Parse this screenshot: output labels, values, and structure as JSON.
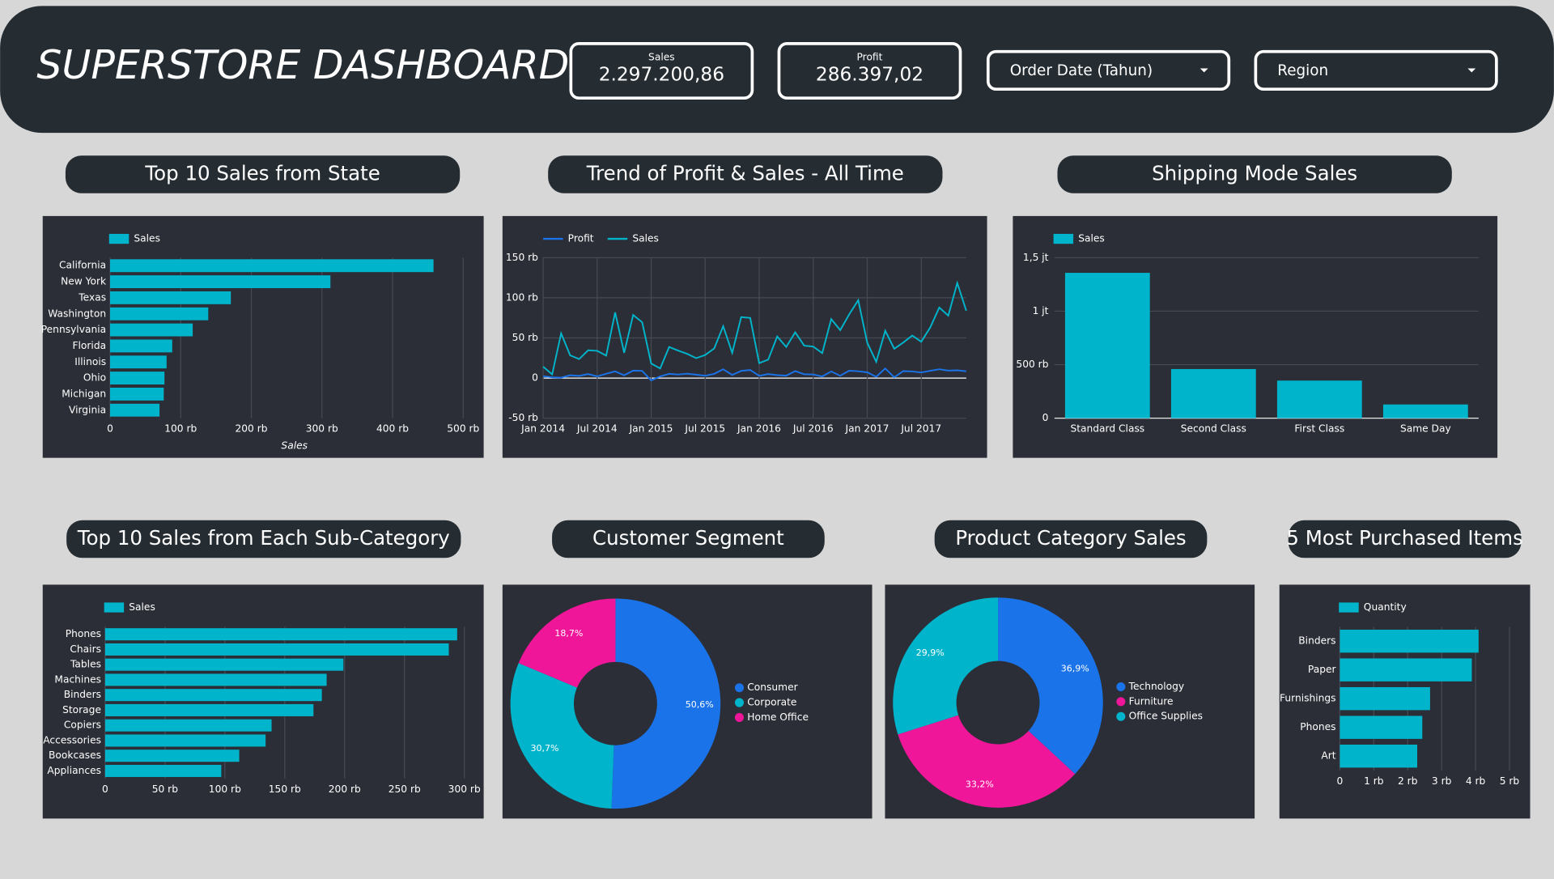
{
  "header": {
    "title": "SUPERSTORE DASHBOARD",
    "kpis": [
      {
        "label": "Sales",
        "value": "2.297.200,86"
      },
      {
        "label": "Profit",
        "value": "286.397,02"
      }
    ],
    "filters": [
      "Order Date (Tahun)",
      "Region"
    ]
  },
  "chart_data": [
    {
      "type": "hbar",
      "title": "Top 10 Sales from State",
      "categories": [
        "California",
        "New York",
        "Texas",
        "Washington",
        "Pennsylvania",
        "Florida",
        "Illinois",
        "Ohio",
        "Michigan",
        "Virginia"
      ],
      "series": [
        {
          "name": "Sales",
          "color": "#00b4cb",
          "values": [
            458000,
            312000,
            171000,
            139000,
            117000,
            88000,
            80000,
            77000,
            76000,
            70000
          ]
        }
      ],
      "xlim": [
        0,
        522000
      ],
      "xticks": [
        0,
        {
          "value": 100000,
          "label": "100 rb"
        },
        {
          "value": 200000,
          "label": "200 rb"
        },
        {
          "value": 300000,
          "label": "300 rb"
        },
        {
          "value": 400000,
          "label": "400 rb"
        },
        {
          "value": 500000,
          "label": "500 rb"
        }
      ],
      "xlabel": "Sales",
      "grid": true
    },
    {
      "type": "line",
      "title": "Trend of Profit & Sales - All Time",
      "x": [
        "2014-01",
        "2014-02",
        "2014-03",
        "2014-04",
        "2014-05",
        "2014-06",
        "2014-07",
        "2014-08",
        "2014-09",
        "2014-10",
        "2014-11",
        "2014-12",
        "2015-01",
        "2015-02",
        "2015-03",
        "2015-04",
        "2015-05",
        "2015-06",
        "2015-07",
        "2015-08",
        "2015-09",
        "2015-10",
        "2015-11",
        "2015-12",
        "2016-01",
        "2016-02",
        "2016-03",
        "2016-04",
        "2016-05",
        "2016-06",
        "2016-07",
        "2016-08",
        "2016-09",
        "2016-10",
        "2016-11",
        "2016-12",
        "2017-01",
        "2017-02",
        "2017-03",
        "2017-04",
        "2017-05",
        "2017-06",
        "2017-07",
        "2017-08",
        "2017-09",
        "2017-10",
        "2017-11",
        "2017-12"
      ],
      "xticks": [
        {
          "value": "2014-01",
          "label": "Jan 2014"
        },
        {
          "value": "2014-07",
          "label": "Jul 2014"
        },
        {
          "value": "2015-01",
          "label": "Jan 2015"
        },
        {
          "value": "2015-07",
          "label": "Jul 2015"
        },
        {
          "value": "2016-01",
          "label": "Jan 2016"
        },
        {
          "value": "2016-07",
          "label": "Jul 2016"
        },
        {
          "value": "2017-01",
          "label": "Jan 2017"
        },
        {
          "value": "2017-07",
          "label": "Jul 2017"
        }
      ],
      "series": [
        {
          "name": "Profit",
          "color": "#1a73e8",
          "values": [
            2450,
            862,
            498,
            3489,
            2739,
            4977,
            2100,
            5318,
            8328,
            3448,
            9292,
            8984,
            -3000,
            2004,
            5269,
            4442,
            5458,
            4260,
            2937,
            5226,
            10992,
            3878,
            8939,
            10002,
            2824,
            5005,
            3612,
            2977,
            8663,
            4751,
            4432,
            2063,
            8209,
            2918,
            9133,
            8484,
            7140,
            1614,
            12000,
            933,
            8662,
            8209,
            6953,
            9041,
            10991,
            9275,
            9690,
            8483
          ]
        },
        {
          "name": "Sales",
          "color": "#00b4cb",
          "values": [
            14237,
            4520,
            55691,
            28295,
            23648,
            34595,
            33946,
            27909,
            81777,
            31453,
            78628,
            69546,
            18174,
            11951,
            38726,
            34195,
            30132,
            24797,
            28765,
            36898,
            64596,
            31404,
            75973,
            74920,
            18542,
            22979,
            51716,
            38750,
            56988,
            40344,
            39262,
            31115,
            73410,
            59688,
            79412,
            96999,
            43971,
            20301,
            58872,
            36522,
            44261,
            52982,
            45264,
            63121,
            87867,
            77777,
            118448,
            83829
          ]
        }
      ],
      "ylim": [
        -50000,
        150000
      ],
      "yticks": [
        {
          "value": -50000,
          "label": "-50 rb"
        },
        0,
        {
          "value": 50000,
          "label": "50 rb"
        },
        {
          "value": 100000,
          "label": "100 rb"
        },
        {
          "value": 150000,
          "label": "150 rb"
        }
      ],
      "grid": true
    },
    {
      "type": "bar",
      "title": "Shipping Mode Sales",
      "categories": [
        "Standard Class",
        "Second Class",
        "First Class",
        "Same Day"
      ],
      "series": [
        {
          "name": "Sales",
          "color": "#00b4cb",
          "values": [
            1358216,
            459194,
            351428,
            128363
          ]
        }
      ],
      "ylim": [
        0,
        1500000
      ],
      "yticks": [
        0,
        {
          "value": 500000,
          "label": "500 rb"
        },
        {
          "value": 1000000,
          "label": "1 jt"
        },
        {
          "value": 1500000,
          "label": "1,5 jt"
        }
      ],
      "grid": true
    },
    {
      "type": "hbar",
      "title": "Top 10 Sales from Each Sub-Category",
      "categories": [
        "Phones",
        "Chairs",
        "Tables",
        "Machines",
        "Binders",
        "Storage",
        "Copiers",
        "Accessories",
        "Bookcases",
        "Appliances"
      ],
      "series": [
        {
          "name": "Sales",
          "color": "#00b4cb",
          "values": [
            294000,
            287000,
            199000,
            185000,
            181000,
            174000,
            139000,
            134000,
            112000,
            97000
          ]
        }
      ],
      "xlim": [
        0,
        312000
      ],
      "xticks": [
        0,
        {
          "value": 50000,
          "label": "50 rb"
        },
        {
          "value": 100000,
          "label": "100 rb"
        },
        {
          "value": 150000,
          "label": "150 rb"
        },
        {
          "value": 200000,
          "label": "200 rb"
        },
        {
          "value": 250000,
          "label": "250 rb"
        },
        {
          "value": 300000,
          "label": "300 rb"
        }
      ],
      "grid": true
    },
    {
      "type": "donut",
      "title": "Customer Segment",
      "categories": [
        "Consumer",
        "Corporate",
        "Home Office"
      ],
      "values": [
        50.6,
        30.7,
        18.7
      ],
      "value_labels": [
        "50,6%",
        "30,7%",
        "18,7%"
      ],
      "colors": [
        "#1a73e8",
        "#00b4cb",
        "#f0169a"
      ]
    },
    {
      "type": "donut",
      "title": "Product Category Sales",
      "categories": [
        "Technology",
        "Furniture",
        "Office Supplies"
      ],
      "values": [
        36.9,
        33.2,
        29.9
      ],
      "value_labels": [
        "36,9%",
        "33,2%",
        "29,9%"
      ],
      "colors": [
        "#1a73e8",
        "#f0169a",
        "#00b4cb"
      ]
    },
    {
      "type": "hbar",
      "title": "5 Most Purchased Items",
      "categories": [
        "Binders",
        "Paper",
        "Furnishings",
        "Phones",
        "Art"
      ],
      "series": [
        {
          "name": "Quantity",
          "color": "#00b4cb",
          "values": [
            4090,
            3890,
            2660,
            2430,
            2280
          ]
        }
      ],
      "xlim": [
        0,
        5200
      ],
      "xticks": [
        0,
        {
          "value": 1000,
          "label": "1 rb"
        },
        {
          "value": 2000,
          "label": "2 rb"
        },
        {
          "value": 3000,
          "label": "3 rb"
        },
        {
          "value": 4000,
          "label": "4 rb"
        },
        {
          "value": 5000,
          "label": "5 rb"
        }
      ],
      "grid": true
    }
  ]
}
